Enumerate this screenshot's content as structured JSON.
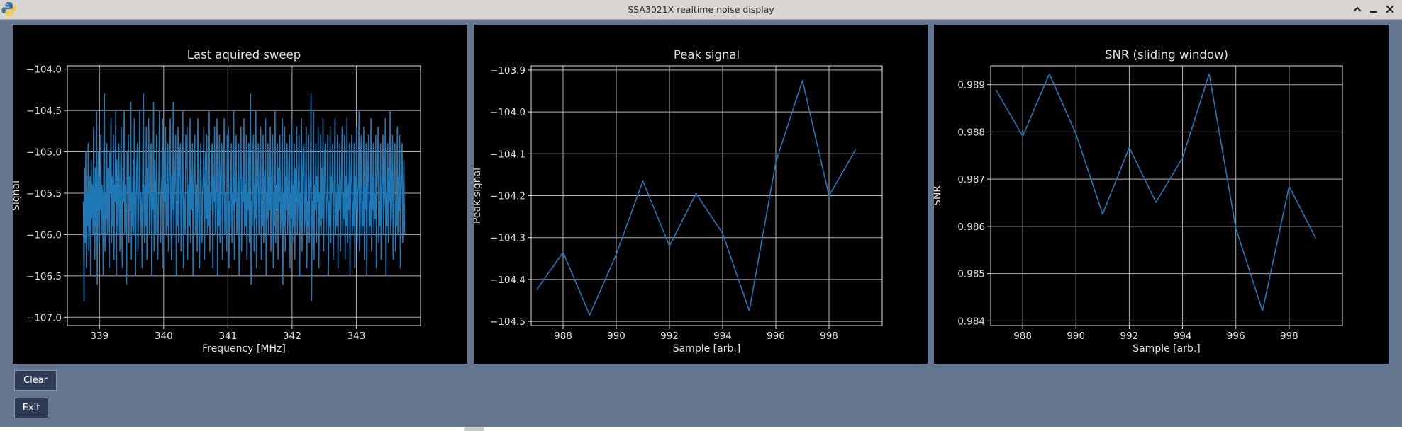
{
  "window": {
    "title": "SSA3021X realtime noise display",
    "minimize_icon": "chevron-up",
    "restore_icon": "minimize-bar",
    "close_icon": "close-x"
  },
  "buttons": {
    "clear_label": "Clear",
    "exit_label": "Exit"
  },
  "colors": {
    "window_bg": "#647590",
    "plot_bg": "#000000",
    "grid": "#b0b0b0",
    "line": "#1f77b4",
    "text": "#e0e0e0"
  },
  "chart_data": [
    {
      "type": "line",
      "title": "Last aquired sweep",
      "xlabel": "Frequency [MHz]",
      "ylabel": "Signal",
      "xlim": [
        338.5,
        344.0
      ],
      "ylim": [
        -107.1,
        -103.96
      ],
      "xticks": [
        339,
        340,
        341,
        342,
        343
      ],
      "yticks": [
        -104.0,
        -104.5,
        -105.0,
        -105.5,
        -106.0,
        -106.5,
        -107.0
      ],
      "xtick_labels": [
        "339",
        "340",
        "341",
        "342",
        "343"
      ],
      "ytick_labels": [
        "−104.0",
        "−104.5",
        "−105.0",
        "−105.5",
        "−106.0",
        "−106.5",
        "−107.0"
      ],
      "grid": true,
      "series": [
        {
          "x_start": 338.75,
          "x_end": 343.75,
          "y": [
            -105.6,
            -106.8,
            -105.2,
            -106.1,
            -105.0,
            -106.4,
            -105.5,
            -105.9,
            -104.9,
            -106.2,
            -105.7,
            -105.3,
            -106.5,
            -105.1,
            -105.8,
            -105.4,
            -106.0,
            -104.7,
            -105.6,
            -106.3,
            -105.2,
            -105.9,
            -104.5,
            -106.6,
            -105.5,
            -105.0,
            -106.1,
            -105.3,
            -105.7,
            -104.8,
            -106.0,
            -105.4,
            -105.6,
            -106.5,
            -105.1,
            -104.3,
            -106.2,
            -105.5,
            -105.8,
            -104.9,
            -106.0,
            -105.2,
            -105.7,
            -106.4,
            -105.0,
            -105.5,
            -104.6,
            -106.1,
            -105.3,
            -105.9,
            -104.8,
            -106.3,
            -105.4,
            -105.6,
            -104.5,
            -106.5,
            -105.1,
            -105.8,
            -106.0,
            -104.9,
            -105.5,
            -106.2,
            -105.3,
            -104.7,
            -105.9,
            -106.4,
            -105.2,
            -105.6,
            -104.5,
            -106.0,
            -105.4,
            -105.8,
            -106.6,
            -105.0,
            -105.5,
            -104.8,
            -106.1,
            -105.3,
            -105.7,
            -104.4,
            -106.3,
            -105.5,
            -105.9,
            -105.1,
            -106.0,
            -104.6,
            -105.4,
            -106.5,
            -105.6,
            -105.2,
            -104.9,
            -106.2,
            -105.8,
            -105.3,
            -104.5,
            -106.0,
            -105.5,
            -105.7,
            -106.4,
            -105.1,
            -104.3,
            -105.6,
            -106.1,
            -105.4,
            -105.9,
            -104.7,
            -106.3,
            -105.2,
            -105.5,
            -104.6,
            -106.0,
            -105.8,
            -105.3,
            -104.9,
            -106.5,
            -105.5,
            -105.7,
            -104.4,
            -106.2,
            -105.1,
            -105.6,
            -106.0,
            -104.8,
            -105.4,
            -106.3,
            -105.9,
            -105.2,
            -104.5,
            -105.7,
            -106.1,
            -105.5,
            -105.3,
            -104.6,
            -106.4,
            -105.8,
            -105.0,
            -105.6,
            -104.7,
            -106.0,
            -105.4,
            -105.9,
            -104.9,
            -106.2,
            -105.5,
            -105.1,
            -104.6,
            -105.8,
            -106.3,
            -105.3,
            -105.7,
            -104.4,
            -106.0,
            -105.5,
            -105.2,
            -104.8,
            -106.5,
            -105.6,
            -105.9,
            -104.7,
            -106.1,
            -105.4,
            -105.0,
            -104.9,
            -106.2,
            -105.7,
            -105.3,
            -104.5,
            -106.4,
            -105.5,
            -105.8,
            -106.0,
            -104.8,
            -105.2,
            -104.7,
            -106.3,
            -105.6,
            -105.4,
            -105.9,
            -104.6,
            -106.1,
            -105.3,
            -105.7,
            -104.9,
            -106.5,
            -105.5,
            -105.1,
            -104.8,
            -106.0,
            -105.8,
            -105.4,
            -106.2,
            -104.6,
            -105.6,
            -105.9,
            -106.4,
            -105.2,
            -104.9,
            -105.7,
            -106.1,
            -105.5,
            -105.3,
            -104.7,
            -106.3,
            -105.6,
            -105.0,
            -105.8,
            -104.8,
            -106.0,
            -105.4,
            -105.9,
            -104.5,
            -106.2,
            -105.5,
            -105.7,
            -105.1,
            -104.9,
            -106.4,
            -105.3,
            -105.6,
            -104.7,
            -106.0,
            -105.8,
            -105.2,
            -104.6,
            -106.5,
            -105.5,
            -105.9,
            -104.8,
            -106.1,
            -105.4,
            -105.0,
            -104.9,
            -106.3,
            -105.7,
            -105.3,
            -104.6,
            -106.0,
            -105.5,
            -105.8,
            -106.2,
            -104.8,
            -105.4,
            -104.7,
            -106.4,
            -105.6,
            -105.9,
            -105.2,
            -104.9,
            -106.1,
            -105.5,
            -105.7,
            -104.5,
            -106.3,
            -105.3,
            -105.6,
            -104.8,
            -106.0,
            -105.9,
            -105.4,
            -104.9,
            -106.5,
            -105.5,
            -105.1,
            -104.7,
            -106.2,
            -105.8,
            -105.3,
            -105.6,
            -104.6,
            -106.0,
            -105.4,
            -105.9,
            -104.8,
            -106.3,
            -105.5,
            -105.7,
            -104.9,
            -106.1,
            -105.2,
            -104.3,
            -106.6,
            -105.6,
            -105.9,
            -105.0,
            -104.8,
            -106.2,
            -105.4,
            -105.8,
            -104.5,
            -106.4,
            -105.5,
            -105.3,
            -104.9,
            -106.0,
            -105.7,
            -105.1,
            -104.7,
            -106.3,
            -105.6,
            -105.9,
            -104.8,
            -106.1,
            -105.4,
            -105.2,
            -104.6,
            -106.5,
            -105.5,
            -105.8,
            -104.9,
            -106.0,
            -105.3,
            -105.7,
            -104.7,
            -106.2,
            -105.6,
            -105.0,
            -104.8,
            -106.4,
            -105.5,
            -105.9,
            -104.5,
            -106.1,
            -105.4,
            -105.7,
            -104.9,
            -106.3,
            -105.2,
            -105.6,
            -104.8,
            -106.0,
            -105.8,
            -105.4,
            -104.6,
            -106.6,
            -105.5,
            -105.9,
            -104.7,
            -106.2,
            -105.3,
            -105.7,
            -104.9,
            -106.0,
            -105.6,
            -105.1,
            -104.8,
            -106.4,
            -105.5,
            -105.8,
            -104.6,
            -106.1,
            -105.4,
            -105.9,
            -104.9,
            -106.3,
            -105.2,
            -105.6,
            -104.7,
            -106.0,
            -105.7,
            -105.3,
            -104.8,
            -106.5,
            -105.5,
            -105.9,
            -104.6,
            -106.2,
            -105.4,
            -105.0,
            -104.9,
            -106.0,
            -105.8,
            -105.3,
            -104.7,
            -106.4,
            -105.6,
            -105.9,
            -104.8,
            -106.1,
            -105.5,
            -105.2,
            -104.3,
            -106.8,
            -105.6,
            -105.9,
            -104.5,
            -106.3,
            -105.4,
            -105.7,
            -104.9,
            -106.1,
            -105.3,
            -105.6,
            -104.7,
            -106.4,
            -105.5,
            -105.9,
            -104.8,
            -106.0,
            -105.2,
            -105.8,
            -104.6,
            -106.2,
            -105.5,
            -105.0,
            -104.9,
            -106.0,
            -105.7,
            -105.4,
            -104.8,
            -106.5,
            -105.6,
            -105.9,
            -104.7,
            -106.1,
            -105.3,
            -105.5,
            -104.9,
            -106.3,
            -105.8,
            -105.2,
            -104.6,
            -106.0,
            -105.5,
            -105.9,
            -104.8,
            -106.4,
            -105.4,
            -105.7,
            -104.9,
            -106.2,
            -105.6,
            -105.1,
            -104.7,
            -106.0,
            -105.5,
            -105.8,
            -104.8,
            -106.3,
            -105.3,
            -105.9,
            -104.6,
            -106.1,
            -105.4,
            -105.7,
            -104.9,
            -106.5,
            -105.5,
            -105.2,
            -104.8,
            -106.0,
            -105.6,
            -105.9,
            -104.9,
            -106.4,
            -105.3,
            -105.7,
            -104.7,
            -106.1,
            -105.5,
            -105.4,
            -104.5,
            -106.2,
            -105.8,
            -105.0,
            -104.8,
            -106.0,
            -105.6,
            -105.9,
            -104.7,
            -106.3,
            -105.4,
            -105.7,
            -104.9,
            -106.5,
            -105.5,
            -105.2,
            -104.8,
            -106.0,
            -105.6,
            -105.9,
            -104.6,
            -106.2,
            -105.3,
            -105.7,
            -104.9,
            -106.0,
            -105.5,
            -105.8,
            -104.8,
            -106.4,
            -105.4,
            -105.1,
            -104.7,
            -106.1,
            -105.6,
            -105.9,
            -104.9,
            -106.3,
            -105.5,
            -105.3,
            -104.8,
            -106.0,
            -105.7,
            -105.4,
            -104.6,
            -106.5,
            -105.5,
            -105.9,
            -104.9,
            -106.1,
            -105.2,
            -105.6,
            -104.5,
            -106.0,
            -105.8,
            -105.4,
            -104.8,
            -106.3,
            -105.5,
            -105.0,
            -104.9,
            -106.2,
            -105.6,
            -105.9,
            -104.7,
            -106.0,
            -105.3,
            -105.7,
            -104.8,
            -106.4,
            -105.5,
            -105.2,
            -104.9,
            -106.1,
            -105.6,
            -105.1,
            -106.0
          ]
        }
      ]
    },
    {
      "type": "line",
      "title": "Peak signal",
      "xlabel": "Sample [arb.]",
      "ylabel": "Peak signal",
      "xlim": [
        986.8,
        1000.0
      ],
      "ylim": [
        -104.51,
        -103.89
      ],
      "xticks": [
        988,
        990,
        992,
        994,
        996,
        998
      ],
      "yticks": [
        -103.9,
        -104.0,
        -104.1,
        -104.2,
        -104.3,
        -104.4,
        -104.5
      ],
      "xtick_labels": [
        "988",
        "990",
        "992",
        "994",
        "996",
        "998"
      ],
      "ytick_labels": [
        "−103.9",
        "−104.0",
        "−104.1",
        "−104.2",
        "−104.3",
        "−104.4",
        "−104.5"
      ],
      "grid": true,
      "series": [
        {
          "x": [
            987,
            988,
            989,
            990,
            991,
            992,
            993,
            994,
            995,
            996,
            997,
            998,
            999
          ],
          "y": [
            -104.425,
            -104.335,
            -104.485,
            -104.34,
            -104.165,
            -104.32,
            -104.195,
            -104.29,
            -104.475,
            -104.12,
            -103.925,
            -104.2,
            -104.09
          ]
        }
      ]
    },
    {
      "type": "line",
      "title": "SNR (sliding window)",
      "xlabel": "Sample [arb.]",
      "ylabel": "SNR",
      "xlim": [
        986.8,
        1000.0
      ],
      "ylim": [
        0.9839,
        0.9894
      ],
      "xticks": [
        988,
        990,
        992,
        994,
        996,
        998
      ],
      "yticks": [
        0.984,
        0.985,
        0.986,
        0.987,
        0.988,
        0.989
      ],
      "xtick_labels": [
        "988",
        "990",
        "992",
        "994",
        "996",
        "998"
      ],
      "ytick_labels": [
        "0.984",
        "0.985",
        "0.986",
        "0.987",
        "0.988",
        "0.989"
      ],
      "grid": true,
      "series": [
        {
          "x": [
            987,
            988,
            989,
            990,
            991,
            992,
            993,
            994,
            995,
            996,
            997,
            998,
            999
          ],
          "y": [
            0.98889,
            0.98791,
            0.98923,
            0.98796,
            0.98626,
            0.98767,
            0.98651,
            0.98745,
            0.98923,
            0.98596,
            0.98421,
            0.98685,
            0.98575
          ]
        }
      ]
    }
  ]
}
